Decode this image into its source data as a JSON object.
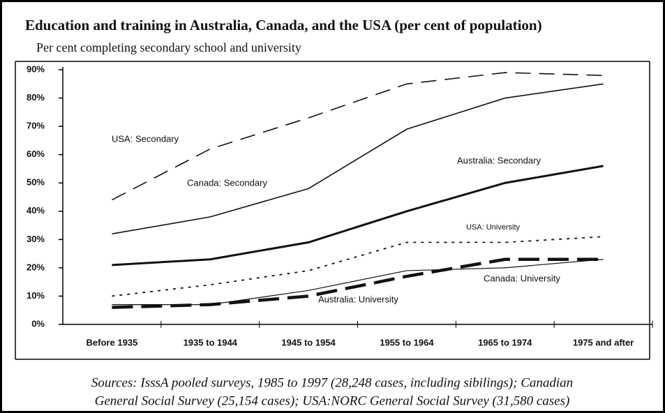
{
  "chart_data": {
    "type": "line",
    "title": "Education and training in Australia, Canada, and the USA (per cent of population)",
    "subtitle": "Per cent completing secondary school and university",
    "categories": [
      "Before 1935",
      "1935 to 1944",
      "1945 to 1954",
      "1955 to 1964",
      "1965 to 1974",
      "1975 and after"
    ],
    "series": [
      {
        "name": "USA: Secondary",
        "color": "#111111",
        "values": [
          44,
          62,
          73,
          85,
          89,
          88
        ]
      },
      {
        "name": "Canada: Secondary",
        "color": "#111111",
        "values": [
          32,
          38,
          48,
          69,
          80,
          85
        ]
      },
      {
        "name": "Australia: Secondary",
        "color": "#111111",
        "values": [
          21,
          23,
          29,
          40,
          50,
          56
        ]
      },
      {
        "name": "USA: University",
        "color": "#111111",
        "values": [
          10,
          14,
          19,
          29,
          29,
          31
        ]
      },
      {
        "name": "Canada: University",
        "color": "#111111",
        "values": [
          7,
          7,
          12,
          19,
          20,
          23
        ]
      },
      {
        "name": "Australia: University",
        "color": "#111111",
        "values": [
          6,
          7,
          10,
          17,
          23,
          23
        ]
      }
    ],
    "ylim": [
      0,
      90
    ],
    "yticks": [
      {
        "value": 0,
        "label": "0%"
      },
      {
        "value": 10,
        "label": "10%"
      },
      {
        "value": 20,
        "label": "20%"
      },
      {
        "value": 30,
        "label": "30%"
      },
      {
        "value": 40,
        "label": "40%"
      },
      {
        "value": 50,
        "label": "50%"
      },
      {
        "value": 60,
        "label": "60%"
      },
      {
        "value": 70,
        "label": "70%"
      },
      {
        "value": 80,
        "label": "80%"
      },
      {
        "value": 90,
        "label": "90%"
      }
    ],
    "grid": false,
    "sources": [
      "Sources: IsssA pooled surveys, 1985 to 1997 (28,248 cases, including sibilings); Canadian",
      "General Social Survey (25,154  cases); USA:NORC General Social Survey (31,580 cases)"
    ]
  }
}
